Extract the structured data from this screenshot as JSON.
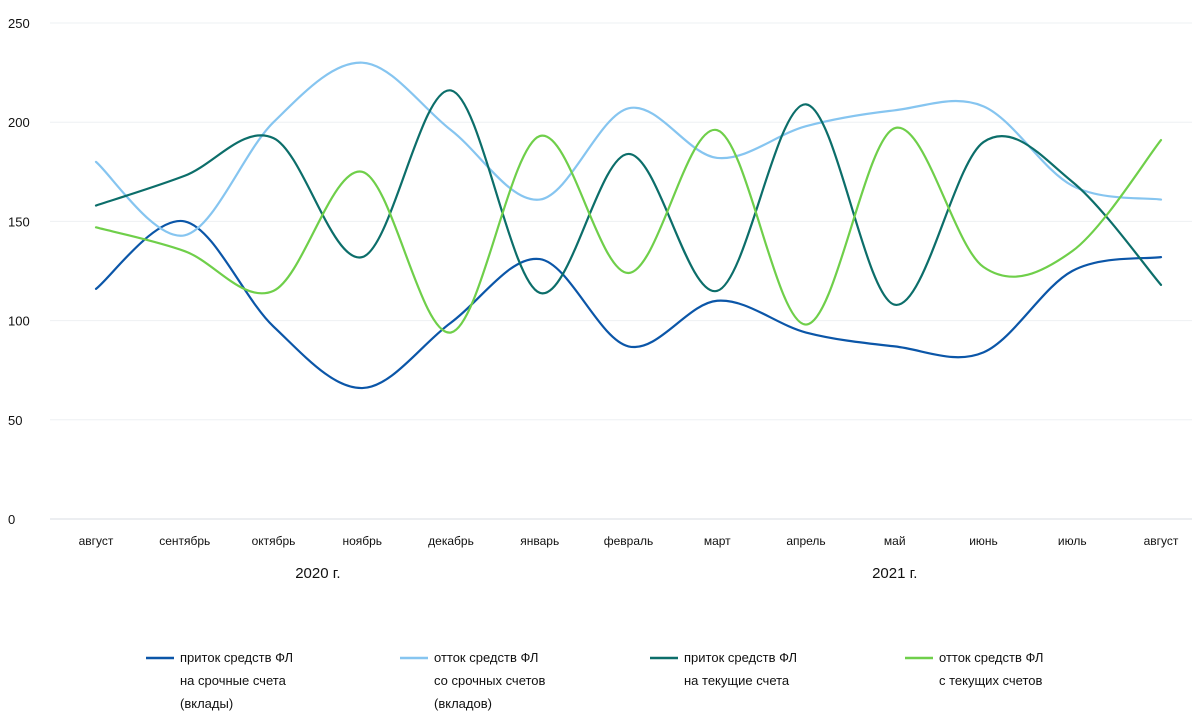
{
  "chart_data": {
    "type": "line",
    "title": "",
    "xlabel": "",
    "ylabel": "",
    "ylim": [
      0,
      250
    ],
    "y_ticks": [
      0,
      50,
      100,
      150,
      200,
      250
    ],
    "categories": [
      "август",
      "сентябрь",
      "октябрь",
      "ноябрь",
      "декабрь",
      "январь",
      "февраль",
      "март",
      "апрель",
      "май",
      "июнь",
      "июль",
      "август"
    ],
    "year_labels": [
      {
        "text": "2020 г.",
        "at_category": 2.5
      },
      {
        "text": "2021 г.",
        "at_category": 9
      }
    ],
    "grid": true,
    "legend_position": "bottom",
    "series": [
      {
        "name_lines": [
          "приток средств ФЛ",
          "на срочные счета",
          "(вклады)"
        ],
        "color": "#0b56a8",
        "values": [
          116,
          150,
          97,
          66,
          99,
          131,
          87,
          110,
          94,
          87,
          84,
          125,
          132
        ]
      },
      {
        "name_lines": [
          "отток средств ФЛ",
          "со срочных счетов",
          "(вкладов)"
        ],
        "color": "#86c5f0",
        "values": [
          180,
          143,
          200,
          230,
          196,
          161,
          207,
          182,
          198,
          206,
          208,
          168,
          161
        ]
      },
      {
        "name_lines": [
          "приток средств ФЛ",
          "на текущие счета"
        ],
        "color": "#0c6e6a",
        "values": [
          158,
          173,
          192,
          132,
          216,
          114,
          184,
          115,
          209,
          108,
          190,
          170,
          118
        ]
      },
      {
        "name_lines": [
          "отток средств ФЛ",
          "с текущих счетов"
        ],
        "color": "#6fcf4a",
        "values": [
          147,
          135,
          115,
          175,
          94,
          193,
          124,
          196,
          98,
          197,
          127,
          135,
          191
        ]
      }
    ]
  }
}
